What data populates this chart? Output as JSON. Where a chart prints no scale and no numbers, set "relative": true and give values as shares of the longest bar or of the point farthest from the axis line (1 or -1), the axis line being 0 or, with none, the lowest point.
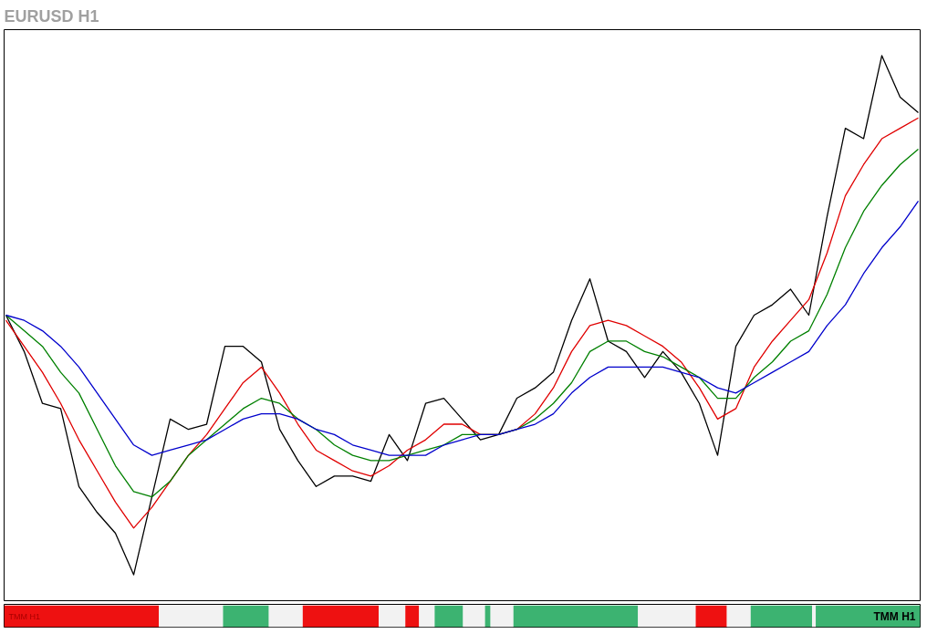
{
  "chart_data": [
    {
      "type": "line",
      "title": "EURUSD H1",
      "relative": true,
      "grid": false,
      "line_style": "solid",
      "categories": [
        null,
        null,
        null,
        null,
        null,
        null,
        null,
        null,
        null,
        null,
        null,
        null,
        null,
        null,
        null,
        null,
        null,
        null,
        null,
        null,
        null,
        null,
        null,
        null,
        null,
        null,
        null,
        null,
        null,
        null,
        null,
        null,
        null,
        null,
        null,
        null,
        null,
        null,
        null,
        null,
        null,
        null,
        null,
        null,
        null,
        null,
        null,
        null,
        null,
        null,
        null
      ],
      "series": [
        {
          "color": "#000000",
          "values": [
            0.5,
            0.43,
            0.33,
            0.32,
            0.17,
            0.12,
            0.08,
            0.0,
            0.15,
            0.3,
            0.28,
            0.29,
            0.44,
            0.44,
            0.41,
            0.28,
            0.22,
            0.17,
            0.19,
            0.19,
            0.18,
            0.27,
            0.22,
            0.33,
            0.34,
            0.3,
            0.26,
            0.27,
            0.34,
            0.36,
            0.39,
            0.49,
            0.57,
            0.45,
            0.43,
            0.38,
            0.43,
            0.39,
            0.33,
            0.23,
            0.44,
            0.5,
            0.52,
            0.55,
            0.5,
            0.69,
            0.86,
            0.84,
            1.0,
            0.92,
            0.89
          ]
        },
        {
          "color": "#e00000",
          "values": [
            0.49,
            0.44,
            0.39,
            0.33,
            0.26,
            0.2,
            0.14,
            0.09,
            0.13,
            0.18,
            0.23,
            0.27,
            0.32,
            0.37,
            0.4,
            0.35,
            0.29,
            0.24,
            0.22,
            0.2,
            0.19,
            0.21,
            0.24,
            0.26,
            0.29,
            0.29,
            0.27,
            0.27,
            0.28,
            0.31,
            0.36,
            0.43,
            0.48,
            0.49,
            0.48,
            0.46,
            0.44,
            0.41,
            0.36,
            0.3,
            0.32,
            0.4,
            0.45,
            0.49,
            0.53,
            0.62,
            0.73,
            0.79,
            0.84,
            0.86,
            0.88
          ]
        },
        {
          "color": "#008000",
          "values": [
            0.5,
            0.47,
            0.44,
            0.39,
            0.35,
            0.28,
            0.21,
            0.16,
            0.15,
            0.18,
            0.23,
            0.26,
            0.29,
            0.32,
            0.34,
            0.33,
            0.3,
            0.28,
            0.25,
            0.23,
            0.22,
            0.22,
            0.23,
            0.24,
            0.25,
            0.27,
            0.27,
            0.27,
            0.28,
            0.3,
            0.33,
            0.37,
            0.43,
            0.45,
            0.45,
            0.43,
            0.42,
            0.4,
            0.38,
            0.34,
            0.34,
            0.38,
            0.41,
            0.45,
            0.47,
            0.54,
            0.63,
            0.7,
            0.75,
            0.79,
            0.82
          ]
        },
        {
          "color": "#0000cc",
          "values": [
            0.5,
            0.49,
            0.47,
            0.44,
            0.4,
            0.35,
            0.3,
            0.25,
            0.23,
            0.24,
            0.25,
            0.26,
            0.28,
            0.3,
            0.31,
            0.31,
            0.3,
            0.28,
            0.27,
            0.25,
            0.24,
            0.23,
            0.23,
            0.23,
            0.25,
            0.26,
            0.27,
            0.27,
            0.28,
            0.29,
            0.31,
            0.35,
            0.38,
            0.4,
            0.4,
            0.4,
            0.4,
            0.39,
            0.38,
            0.36,
            0.35,
            0.37,
            0.39,
            0.41,
            0.43,
            0.48,
            0.52,
            0.58,
            0.63,
            0.67,
            0.72
          ]
        }
      ]
    },
    {
      "type": "bar",
      "orientation": "horizontal",
      "stacked": true,
      "relative": true,
      "categories": [
        null
      ],
      "annotations": [
        "TMM H1",
        "TMM H1"
      ],
      "series": [
        {
          "color": "#ee1111",
          "values": [
            0.169
          ]
        },
        {
          "color": "#f2f2f2",
          "values": [
            0.07
          ]
        },
        {
          "color": "#3cb371",
          "values": [
            0.05
          ]
        },
        {
          "color": "#f2f2f2",
          "values": [
            0.037
          ]
        },
        {
          "color": "#ee1111",
          "values": [
            0.083
          ]
        },
        {
          "color": "#f2f2f2",
          "values": [
            0.029
          ]
        },
        {
          "color": "#ee1111",
          "values": [
            0.015
          ]
        },
        {
          "color": "#f2f2f2",
          "values": [
            0.017
          ]
        },
        {
          "color": "#3cb371",
          "values": [
            0.031
          ]
        },
        {
          "color": "#f2f2f2",
          "values": [
            0.024
          ]
        },
        {
          "color": "#3cb371",
          "values": [
            0.006
          ]
        },
        {
          "color": "#f2f2f2",
          "values": [
            0.025
          ]
        },
        {
          "color": "#3cb371",
          "values": [
            0.136
          ]
        },
        {
          "color": "#f2f2f2",
          "values": [
            0.063
          ]
        },
        {
          "color": "#ee1111",
          "values": [
            0.034
          ]
        },
        {
          "color": "#f2f2f2",
          "values": [
            0.026
          ]
        },
        {
          "color": "#3cb371",
          "values": [
            0.067
          ]
        },
        {
          "color": "#f2f2f2",
          "values": [
            0.004
          ]
        },
        {
          "color": "#3cb371",
          "values": [
            0.114
          ]
        }
      ]
    }
  ]
}
